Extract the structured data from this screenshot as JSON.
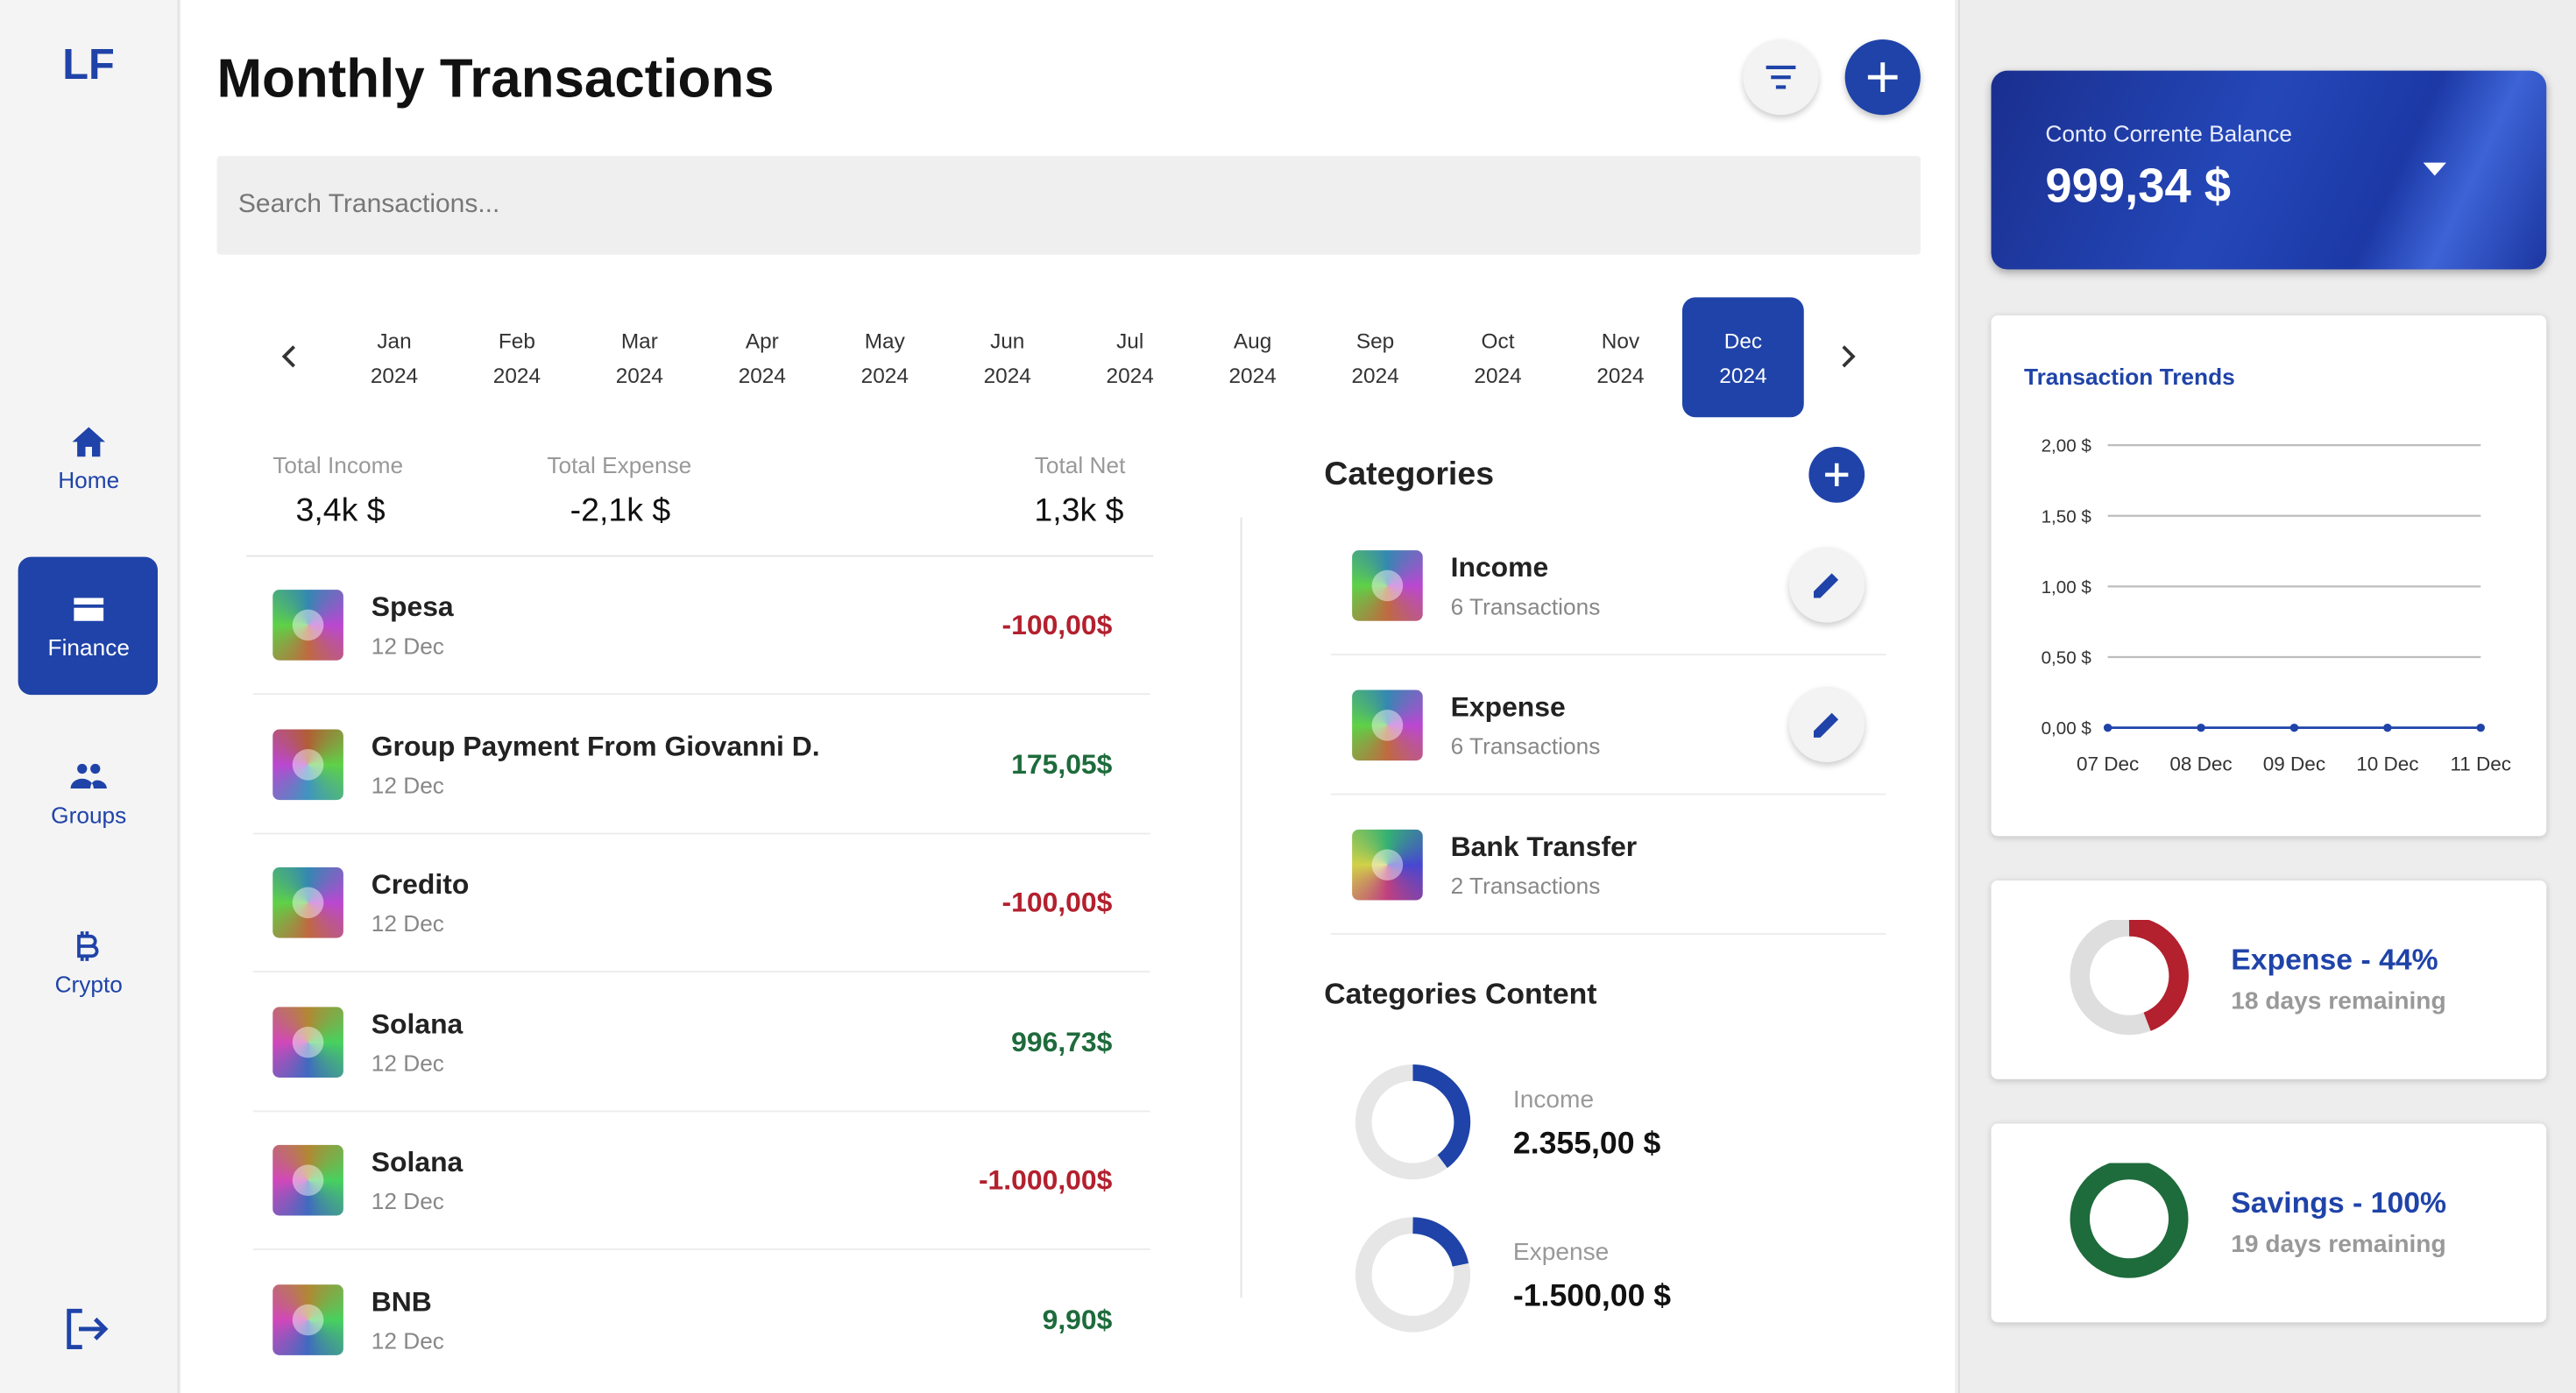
{
  "brand": "LF",
  "nav": [
    {
      "label": "Home"
    },
    {
      "label": "Finance"
    },
    {
      "label": "Groups"
    },
    {
      "label": "Crypto"
    }
  ],
  "header": {
    "title": "Monthly Transactions",
    "search_placeholder": "Search Transactions..."
  },
  "months": [
    {
      "month": "Jan",
      "year": "2024"
    },
    {
      "month": "Feb",
      "year": "2024"
    },
    {
      "month": "Mar",
      "year": "2024"
    },
    {
      "month": "Apr",
      "year": "2024"
    },
    {
      "month": "May",
      "year": "2024"
    },
    {
      "month": "Jun",
      "year": "2024"
    },
    {
      "month": "Jul",
      "year": "2024"
    },
    {
      "month": "Aug",
      "year": "2024"
    },
    {
      "month": "Sep",
      "year": "2024"
    },
    {
      "month": "Oct",
      "year": "2024"
    },
    {
      "month": "Nov",
      "year": "2024"
    },
    {
      "month": "Dec",
      "year": "2024"
    }
  ],
  "summary": [
    {
      "label": "Total Income",
      "value": "3,4k $"
    },
    {
      "label": "Total Expense",
      "value": "-2,1k $"
    },
    {
      "label": "Total Net",
      "value": "1,3k $"
    }
  ],
  "transactions": [
    {
      "name": "Spesa",
      "date": "12 Dec",
      "amount": "-100,00$"
    },
    {
      "name": "Group Payment From Giovanni D.",
      "date": "12 Dec",
      "amount": "175,05$"
    },
    {
      "name": "Credito",
      "date": "12 Dec",
      "amount": "-100,00$"
    },
    {
      "name": "Solana",
      "date": "12 Dec",
      "amount": "996,73$"
    },
    {
      "name": "Solana",
      "date": "12 Dec",
      "amount": "-1.000,00$"
    },
    {
      "name": "BNB",
      "date": "12 Dec",
      "amount": "9,90$"
    }
  ],
  "categories": {
    "title": "Categories",
    "items": [
      {
        "name": "Income",
        "count": "6 Transactions"
      },
      {
        "name": "Expense",
        "count": "6 Transactions"
      },
      {
        "name": "Bank Transfer",
        "count": "2 Transactions"
      }
    ]
  },
  "categories_content": {
    "title": "Categories Content",
    "items": [
      {
        "name": "Income",
        "amount": "2.355,00 $"
      },
      {
        "name": "Expense",
        "amount": "-1.500,00 $"
      }
    ]
  },
  "balance": {
    "label": "Conto Corrente Balance",
    "amount": "999,34 $"
  },
  "trends": {
    "title": "Transaction Trends",
    "type": "line",
    "categories": [
      "07 Dec",
      "08 Dec",
      "09 Dec",
      "10 Dec",
      "11 Dec"
    ],
    "values": [
      0,
      0,
      0,
      0,
      0
    ],
    "ylim": [
      0,
      2
    ],
    "yticks": [
      {
        "value": 0,
        "label": "0,00 $"
      },
      {
        "value": 0.5,
        "label": "0,50 $"
      },
      {
        "value": 1,
        "label": "1,00 $"
      },
      {
        "value": 1.5,
        "label": "1,50 $"
      },
      {
        "value": 2,
        "label": "2,00 $"
      }
    ]
  },
  "goals": [
    {
      "title": "Expense - 44%",
      "remaining": "18 days remaining"
    },
    {
      "title": "Savings - 100%",
      "remaining": "19 days remaining"
    }
  ]
}
